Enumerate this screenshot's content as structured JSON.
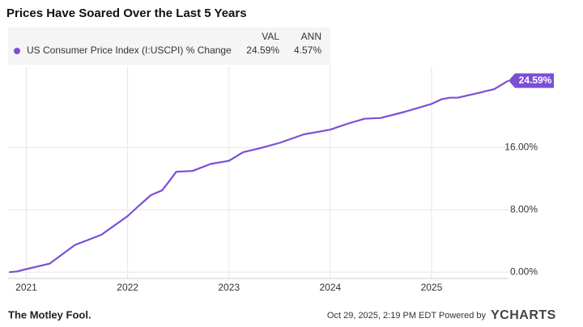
{
  "chart_data": {
    "type": "line",
    "title": "Prices Have Soared Over the Last 5 Years",
    "legend": {
      "columns": [
        "VAL",
        "ANN"
      ],
      "val": {
        "value": 24.59,
        "label": "24.59%"
      },
      "ann": {
        "value": 4.57,
        "label": "4.57%"
      }
    },
    "x": [
      2020.83,
      2020.91,
      2021.0,
      2021.23,
      2021.48,
      2021.74,
      2022.0,
      2022.1,
      2022.23,
      2022.34,
      2022.4,
      2022.48,
      2022.64,
      2022.82,
      2023.0,
      2023.14,
      2023.3,
      2023.5,
      2023.74,
      2024.0,
      2024.18,
      2024.34,
      2024.5,
      2024.74,
      2025.0,
      2025.1,
      2025.18,
      2025.26,
      2025.46,
      2025.62,
      2025.76
    ],
    "series": [
      {
        "name": "US Consumer Price Index (I:USCPI) % Change",
        "color": "#7b4fd6",
        "values": [
          0,
          0.1,
          0.4,
          1.1,
          3.5,
          4.8,
          7.2,
          8.4,
          9.9,
          10.5,
          11.5,
          12.9,
          13.0,
          13.9,
          14.3,
          15.4,
          15.9,
          16.6,
          17.7,
          18.3,
          19.1,
          19.7,
          19.8,
          20.6,
          21.6,
          22.2,
          22.4,
          22.4,
          23.0,
          23.5,
          24.59
        ],
        "value_labels": [
          null,
          null,
          null,
          null,
          null,
          null,
          null,
          null,
          null,
          null,
          null,
          null,
          null,
          null,
          null,
          null,
          null,
          null,
          null,
          null,
          null,
          null,
          null,
          null,
          null,
          null,
          null,
          null,
          null,
          null,
          "24.59%"
        ]
      }
    ],
    "xlim": [
      2020.82,
      2025.76
    ],
    "xticks": [
      2021,
      2022,
      2023,
      2024,
      2025
    ],
    "ylim": [
      -0.8,
      25.8
    ],
    "yticks": [
      {
        "value": 0,
        "label": "0.00%"
      },
      {
        "value": 8,
        "label": "8.00%"
      },
      {
        "value": 16,
        "label": "16.00%"
      }
    ],
    "grid": true,
    "footer": {
      "logo": "The Motley Fool.",
      "source": "Oct 29, 2025, 2:19 PM EDT Powered by",
      "brand": "YCHARTS"
    }
  }
}
